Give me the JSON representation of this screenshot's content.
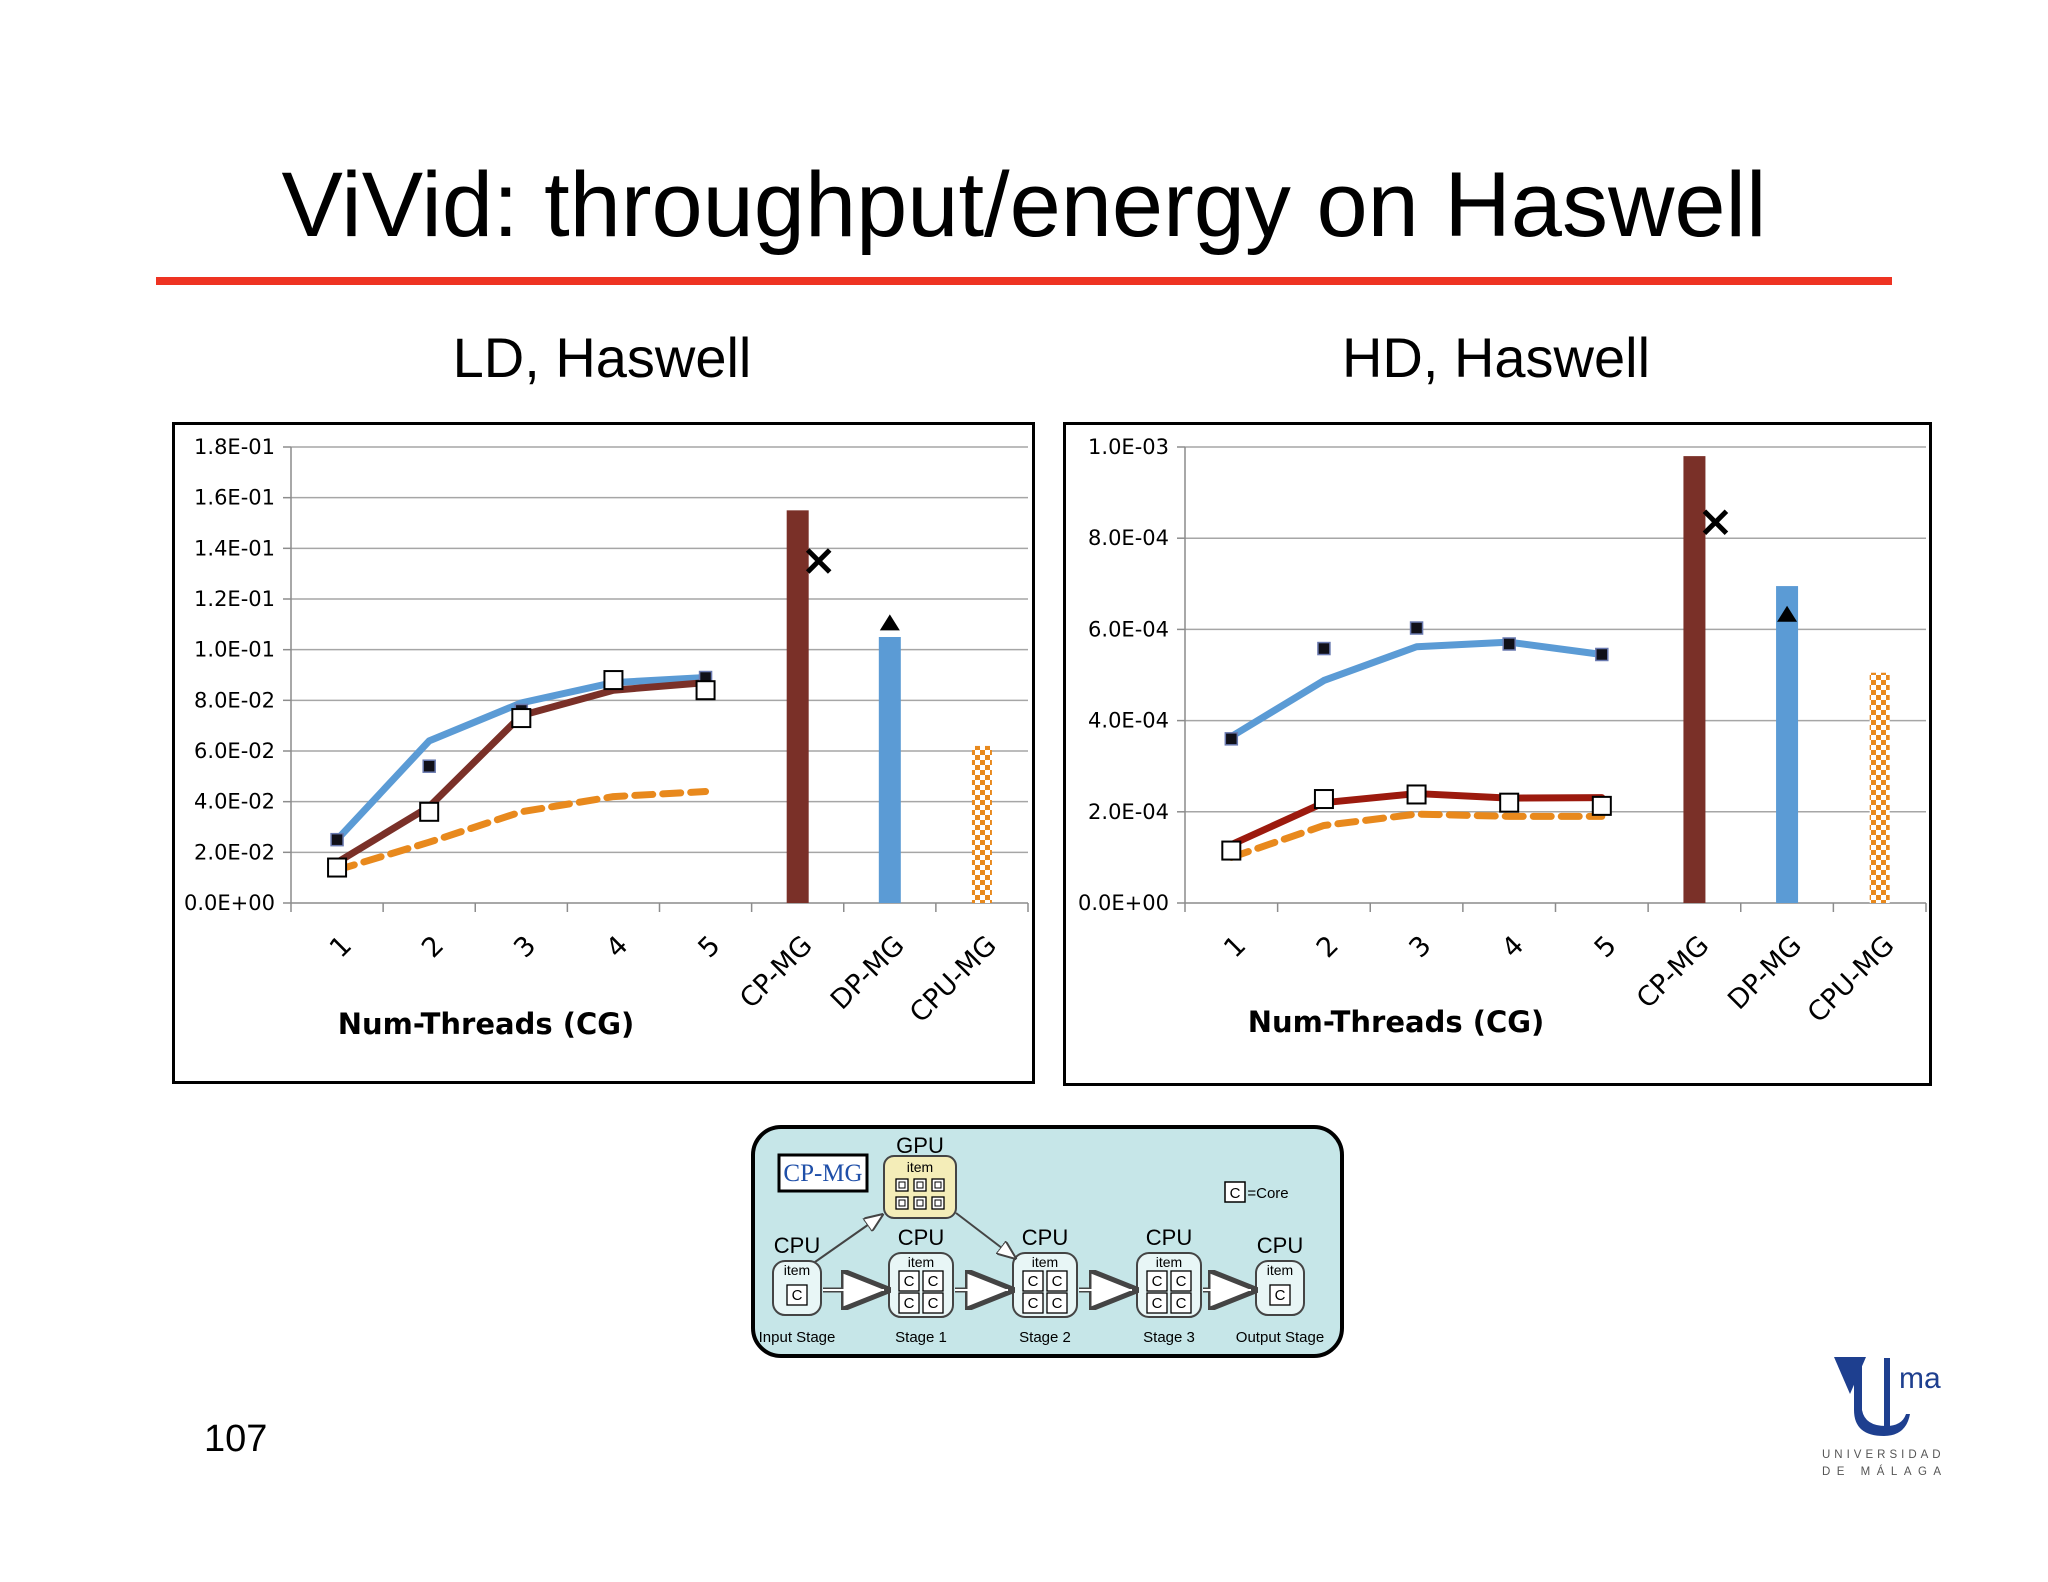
{
  "slide": {
    "title": "ViVid: throughput/energy on Haswell",
    "page_number": "107"
  },
  "colors": {
    "title_rule": "#ee3322",
    "cp_mg": "#7a3028",
    "dp_mg": "#5b9bd5",
    "cpu_mg": "#e8891d",
    "line_blue": "#5b9bd5",
    "line_red_left": "#7a3028",
    "line_red_right": "#9c1a0e",
    "line_orange": "#e8891d",
    "diagram_bg": "#c6e6e8",
    "gpu_node": "#f4edb8",
    "logo_blue": "#1e3f8f"
  },
  "chart_data": [
    {
      "type": "bar",
      "title": "LD, Haswell",
      "xlabel": "Num-Threads (CG)",
      "ylabel": "",
      "ylim": [
        0,
        0.18
      ],
      "yticks": [
        "0.0E+00",
        "2.0E-02",
        "4.0E-02",
        "6.0E-02",
        "8.0E-02",
        "1.0E-01",
        "1.2E-01",
        "1.4E-01",
        "1.6E-01",
        "1.8E-01"
      ],
      "categories": [
        "1",
        "2",
        "3",
        "4",
        "5",
        "CP-MG",
        "DP-MG",
        "CPU-MG"
      ],
      "grid": true,
      "legend": "none",
      "bars": [
        {
          "category": "CP-MG",
          "value": 0.155,
          "style": "solid",
          "color": "#7a3028"
        },
        {
          "category": "DP-MG",
          "value": 0.105,
          "style": "solid",
          "color": "#5b9bd5"
        },
        {
          "category": "CPU-MG",
          "value": 0.062,
          "style": "checkered",
          "color": "#e8891d"
        }
      ],
      "lines": [
        {
          "x": [
            "1",
            "2",
            "3",
            "4",
            "5"
          ],
          "values": [
            0.025,
            0.064,
            0.079,
            0.087,
            0.089
          ],
          "color": "#5b9bd5",
          "style": "solid"
        },
        {
          "x": [
            "1",
            "2",
            "3",
            "4",
            "5"
          ],
          "values": [
            0.016,
            0.038,
            0.074,
            0.084,
            0.087
          ],
          "color": "#7a3028",
          "style": "solid"
        },
        {
          "x": [
            "1",
            "2",
            "3",
            "4",
            "5"
          ],
          "values": [
            0.013,
            0.024,
            0.036,
            0.042,
            0.044
          ],
          "color": "#e8891d",
          "style": "dashed"
        }
      ],
      "markers": [
        {
          "x": [
            "1",
            "2",
            "3",
            "4",
            "5"
          ],
          "values": [
            0.025,
            0.054,
            0.076,
            0.087,
            0.089
          ],
          "shape": "filled-square"
        },
        {
          "x": [
            "1",
            "2",
            "3",
            "4",
            "5"
          ],
          "values": [
            0.014,
            0.036,
            0.073,
            0.088,
            0.084
          ],
          "shape": "open-square"
        },
        {
          "x": [
            "CP-MG"
          ],
          "values": [
            0.135
          ],
          "shape": "cross"
        },
        {
          "x": [
            "DP-MG"
          ],
          "values": [
            0.11
          ],
          "shape": "triangle"
        }
      ]
    },
    {
      "type": "bar",
      "title": "HD, Haswell",
      "xlabel": "Num-Threads (CG)",
      "ylabel": "",
      "ylim": [
        0,
        0.001
      ],
      "yticks": [
        "0.0E+00",
        "2.0E-04",
        "4.0E-04",
        "6.0E-04",
        "8.0E-04",
        "1.0E-03"
      ],
      "categories": [
        "1",
        "2",
        "3",
        "4",
        "5",
        "CP-MG",
        "DP-MG",
        "CPU-MG"
      ],
      "grid": true,
      "legend": "none",
      "bars": [
        {
          "category": "CP-MG",
          "value": 0.00098,
          "style": "solid",
          "color": "#7a3028"
        },
        {
          "category": "DP-MG",
          "value": 0.000695,
          "style": "solid",
          "color": "#5b9bd5"
        },
        {
          "category": "CPU-MG",
          "value": 0.000505,
          "style": "checkered",
          "color": "#e8891d"
        }
      ],
      "lines": [
        {
          "x": [
            "1",
            "2",
            "3",
            "4",
            "5"
          ],
          "values": [
            0.000365,
            0.000488,
            0.000562,
            0.000572,
            0.000545
          ],
          "color": "#5b9bd5",
          "style": "solid"
        },
        {
          "x": [
            "1",
            "2",
            "3",
            "4",
            "5"
          ],
          "values": [
            0.000128,
            0.00022,
            0.00024,
            0.00023,
            0.000231
          ],
          "color": "#9c1a0e",
          "style": "solid"
        },
        {
          "x": [
            "1",
            "2",
            "3",
            "4",
            "5"
          ],
          "values": [
            0.0001,
            0.00017,
            0.000195,
            0.00019,
            0.00019
          ],
          "color": "#e8891d",
          "style": "dashed"
        }
      ],
      "markers": [
        {
          "x": [
            "1",
            "2",
            "3",
            "4",
            "5"
          ],
          "values": [
            0.00036,
            0.000558,
            0.000603,
            0.000568,
            0.000545
          ],
          "shape": "filled-square"
        },
        {
          "x": [
            "1",
            "2",
            "3",
            "4",
            "5"
          ],
          "values": [
            0.000115,
            0.000228,
            0.000238,
            0.00022,
            0.000213
          ],
          "shape": "open-square"
        },
        {
          "x": [
            "CP-MG"
          ],
          "values": [
            0.000835
          ],
          "shape": "cross"
        },
        {
          "x": [
            "DP-MG"
          ],
          "values": [
            0.00063
          ],
          "shape": "triangle"
        }
      ]
    }
  ],
  "diagram": {
    "tag": "CP-MG",
    "legend_core_symbol": "C",
    "legend_core_text": "=Core",
    "gpu": {
      "device": "GPU",
      "item": "item"
    },
    "stages": [
      {
        "device": "CPU",
        "item": "item",
        "cores": 1,
        "label": "Input Stage"
      },
      {
        "device": "CPU",
        "item": "item",
        "cores": 4,
        "label": "Stage 1"
      },
      {
        "device": "CPU",
        "item": "item",
        "cores": 4,
        "label": "Stage 2"
      },
      {
        "device": "CPU",
        "item": "item",
        "cores": 4,
        "label": "Stage 3"
      },
      {
        "device": "CPU",
        "item": "item",
        "cores": 1,
        "label": "Output Stage"
      }
    ]
  },
  "logo": {
    "mark_text": "ma",
    "line1": "UNIVERSIDAD",
    "line2": "DE MÁLAGA"
  }
}
